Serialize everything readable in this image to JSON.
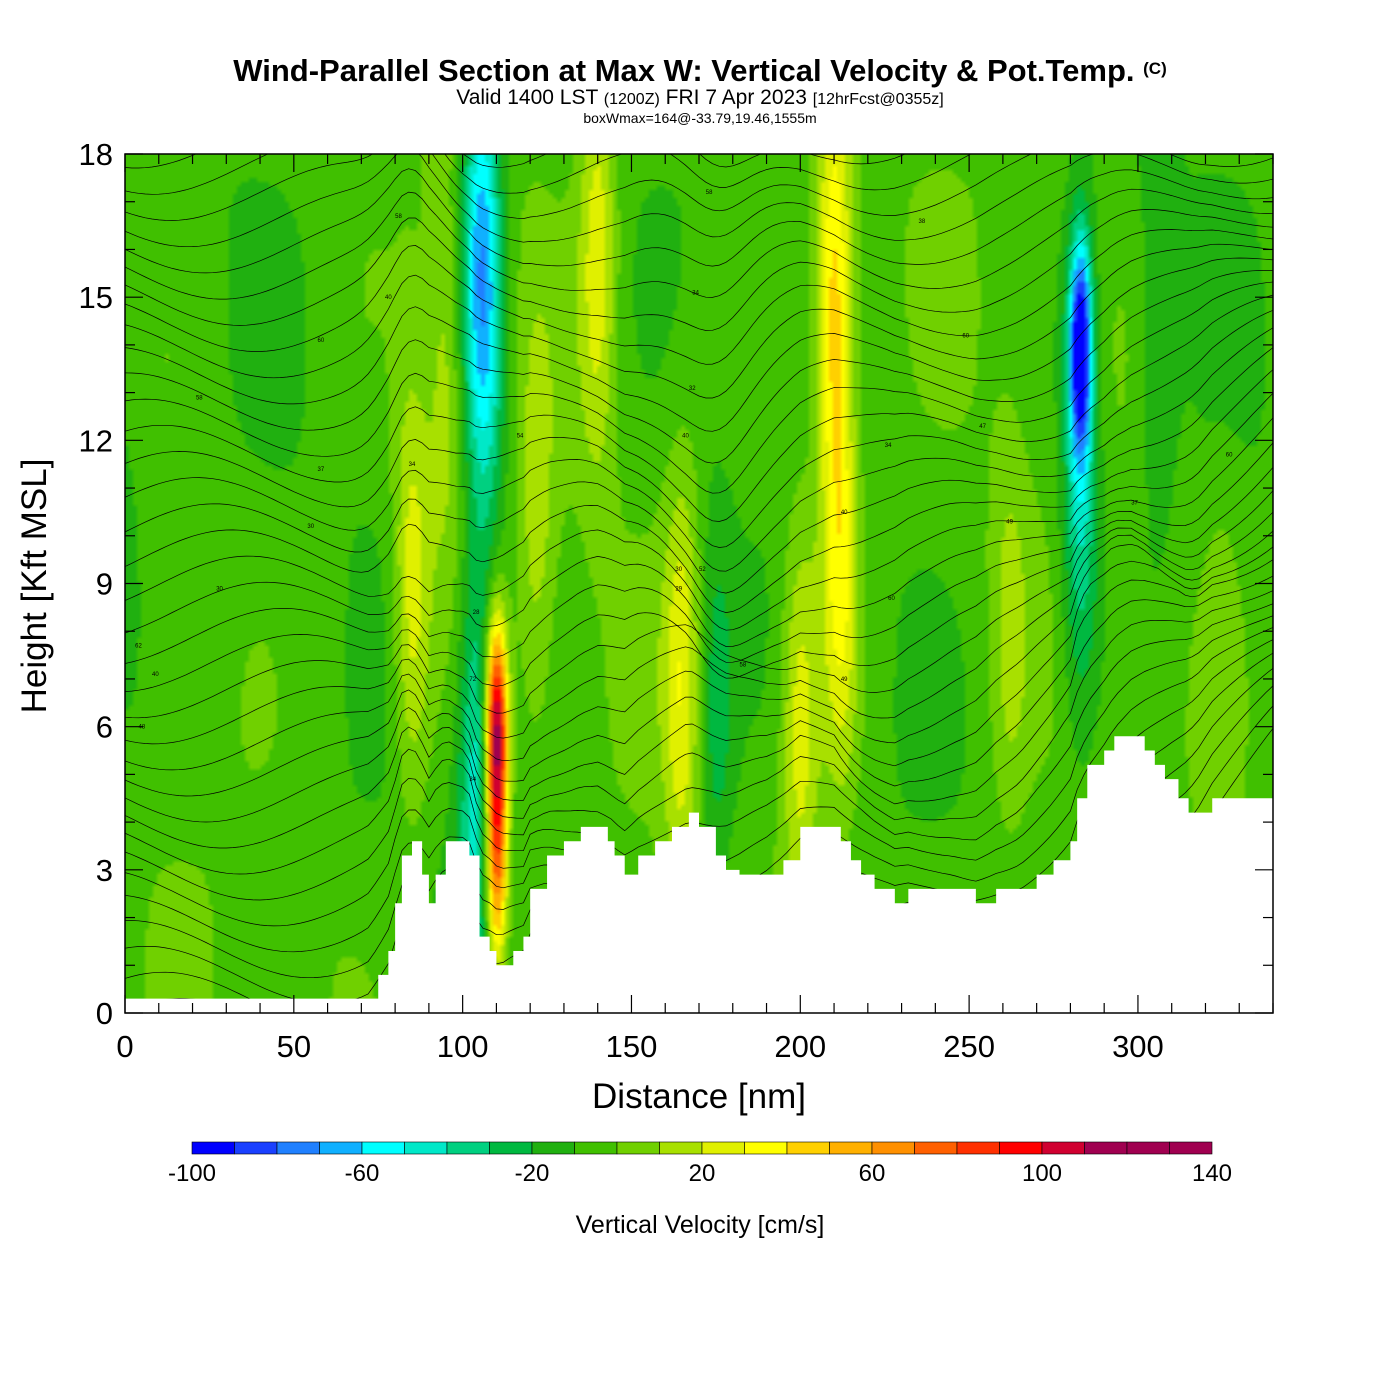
{
  "title": {
    "main": "Wind-Parallel Section at Max W: Vertical Velocity & Pot.Temp.",
    "copyright": "(C)",
    "valid_prefix": "Valid 1400 LST",
    "valid_utc": "(1200Z)",
    "valid_date": "FRI 7 Apr 2023",
    "forecast": "[12hrFcst@0355z]",
    "box_info": "boxWmax=164@-33.79,19.46,1555m"
  },
  "chart_data": {
    "type": "heatmap",
    "xlabel": "Distance [nm]",
    "ylabel": "Height [Kft MSL]",
    "xlim": [
      0,
      340
    ],
    "ylim": [
      0,
      18
    ],
    "x_ticks": [
      "0",
      "50",
      "100",
      "150",
      "200",
      "250",
      "300"
    ],
    "y_ticks": [
      "0",
      "3",
      "6",
      "9",
      "12",
      "15",
      "18"
    ],
    "colorbar": {
      "title": "Vertical Velocity [cm/s]",
      "range": [
        -100,
        140
      ],
      "step": 10,
      "tick_labels": [
        "-100",
        "-60",
        "-20",
        "20",
        "60",
        "100",
        "140"
      ],
      "colors": [
        "#0000ff",
        "#1a40ff",
        "#2080ff",
        "#10b0ff",
        "#00ffff",
        "#00e8c8",
        "#00d080",
        "#00b840",
        "#20b010",
        "#40c000",
        "#70d000",
        "#a8e000",
        "#e0f000",
        "#ffff00",
        "#ffd000",
        "#ffb000",
        "#ff9000",
        "#ff6000",
        "#ff3000",
        "#ff0000",
        "#d00030",
        "#a00050"
      ]
    },
    "terrain": {
      "x": [
        0,
        72,
        75,
        78,
        80,
        82,
        85,
        88,
        90,
        92,
        95,
        100,
        102,
        105,
        108,
        110,
        112,
        115,
        118,
        120,
        125,
        130,
        135,
        140,
        143,
        145,
        148,
        152,
        157,
        162,
        167,
        170,
        175,
        178,
        182,
        190,
        195,
        200,
        205,
        210,
        212,
        215,
        218,
        222,
        228,
        232,
        245,
        252,
        258,
        265,
        270,
        275,
        280,
        282,
        285,
        290,
        293,
        295,
        298,
        302,
        305,
        308,
        312,
        315,
        318,
        322,
        340
      ],
      "y": [
        0.3,
        0.3,
        0.8,
        1.3,
        2.3,
        3.3,
        3.6,
        2.9,
        2.3,
        2.9,
        3.6,
        3.6,
        3.3,
        1.6,
        1.3,
        1.0,
        1.0,
        1.3,
        1.6,
        2.6,
        3.3,
        3.6,
        3.9,
        3.9,
        3.6,
        3.3,
        2.9,
        3.3,
        3.6,
        3.9,
        4.2,
        3.9,
        3.3,
        3.0,
        2.9,
        2.9,
        3.2,
        3.9,
        3.9,
        3.9,
        3.6,
        3.2,
        2.9,
        2.6,
        2.3,
        2.6,
        2.6,
        2.3,
        2.6,
        2.6,
        2.9,
        3.2,
        3.6,
        4.5,
        5.2,
        5.5,
        5.8,
        5.8,
        5.8,
        5.5,
        5.2,
        4.9,
        4.5,
        4.2,
        4.2,
        4.5,
        4.5
      ]
    },
    "w_features": [
      {
        "x": 0,
        "z": 9,
        "w": -12
      },
      {
        "x": 60,
        "z": 8,
        "w": 10
      },
      {
        "x": 85,
        "z": 9,
        "w": 32
      },
      {
        "x": 95,
        "z": 13,
        "w": 20
      },
      {
        "x": 105,
        "z": 16,
        "w": -50
      },
      {
        "x": 108,
        "z": 14,
        "w": -25
      },
      {
        "x": 110,
        "z": 6,
        "w": 120
      },
      {
        "x": 110,
        "z": 3,
        "w": 75
      },
      {
        "x": 104,
        "z": 5,
        "w": -40
      },
      {
        "x": 122,
        "z": 10,
        "w": 18
      },
      {
        "x": 140,
        "z": 16,
        "w": 30
      },
      {
        "x": 165,
        "z": 7,
        "w": 30
      },
      {
        "x": 175,
        "z": 6,
        "w": -20
      },
      {
        "x": 200,
        "z": 6,
        "w": 30
      },
      {
        "x": 210,
        "z": 15,
        "w": 50
      },
      {
        "x": 212,
        "z": 9,
        "w": 35
      },
      {
        "x": 262,
        "z": 8,
        "w": 15
      },
      {
        "x": 283,
        "z": 14,
        "w": -90
      },
      {
        "x": 283,
        "z": 11,
        "w": -40
      },
      {
        "x": 306,
        "z": 14,
        "w": -15
      },
      {
        "x": 325,
        "z": 7,
        "w": 8
      }
    ],
    "contour_labels": [
      "58",
      "40",
      "60",
      "58",
      "37",
      "30",
      "30",
      "34",
      "54",
      "72",
      "34",
      "58",
      "28",
      "30",
      "52",
      "29",
      "58",
      "34",
      "32",
      "40",
      "49",
      "40",
      "60",
      "38",
      "60",
      "47",
      "49",
      "34",
      "48",
      "62",
      "40",
      "37",
      "60"
    ]
  }
}
